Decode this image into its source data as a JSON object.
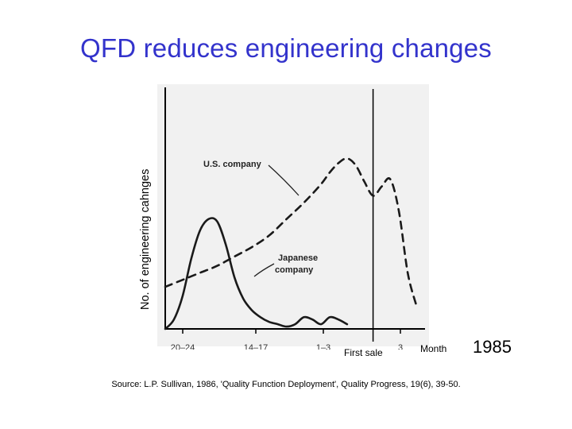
{
  "slide": {
    "title": "QFD reduces engineering changes",
    "year_label": "1985",
    "source": "Source: L.P. Sullivan, 1986, 'Quality Function Deployment', Quality Progress, 19(6), 39-50."
  },
  "chart_data": {
    "type": "line",
    "title": "QFD reduces engineering changes",
    "xlabel": "Month",
    "ylabel": "No. of engineering cahnges",
    "x_ticks": [
      "20–24",
      "14–17",
      "1–3",
      "3"
    ],
    "first_sale_label": "First sale",
    "xlim": [
      -24,
      6
    ],
    "ylim": [
      0,
      100
    ],
    "series": [
      {
        "name": "U.S. company",
        "style": "dashed",
        "x": [
          -24,
          -22,
          -20,
          -18,
          -16,
          -14,
          -12,
          -10,
          -8,
          -6,
          -5,
          -4,
          -3,
          -2,
          -1,
          0,
          1,
          2,
          3,
          4,
          5
        ],
        "y": [
          18,
          21,
          24,
          27,
          31,
          35,
          40,
          47,
          54,
          62,
          67,
          71,
          73,
          70,
          63,
          57,
          61,
          64,
          50,
          24,
          10
        ]
      },
      {
        "name": "Japanese company",
        "style": "solid",
        "x": [
          -24,
          -23,
          -22,
          -21,
          -20,
          -19,
          -18,
          -17,
          -16,
          -15,
          -14,
          -13,
          -12,
          -11,
          -10,
          -9,
          -8,
          -7,
          -6,
          -5,
          -4,
          -3
        ],
        "y": [
          0,
          4,
          14,
          30,
          42,
          47,
          46,
          36,
          22,
          13,
          8,
          5,
          3,
          2,
          1,
          2,
          5,
          4,
          2,
          5,
          4,
          2
        ]
      }
    ],
    "annotations": [
      "U.S. company",
      "Japanese\ncompany"
    ],
    "colors": {
      "axis": "#000000",
      "line": "#1a1a1a",
      "title": "#3333cc"
    }
  }
}
